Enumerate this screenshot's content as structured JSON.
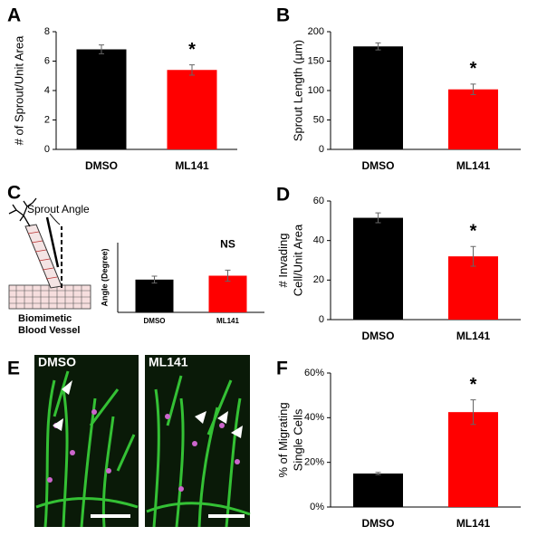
{
  "chart_data": [
    {
      "type": "bar",
      "panel": "A",
      "ylabel": [
        "# of Sprout/Unit Area"
      ],
      "categories": [
        "DMSO",
        "ML141"
      ],
      "values": [
        6.8,
        5.4
      ],
      "errors": [
        0.3,
        0.35
      ],
      "colors": [
        "#000000",
        "#ff0000"
      ],
      "ylim": [
        0,
        8
      ],
      "yticks": [
        0,
        2,
        4,
        6,
        8
      ],
      "annotation": "*"
    },
    {
      "type": "bar",
      "panel": "B",
      "ylabel": [
        "Sprout Length (µm)"
      ],
      "categories": [
        "DMSO",
        "ML141"
      ],
      "values": [
        175,
        102
      ],
      "errors": [
        6,
        9
      ],
      "colors": [
        "#000000",
        "#ff0000"
      ],
      "ylim": [
        0,
        200
      ],
      "yticks": [
        0,
        50,
        100,
        150,
        200
      ],
      "annotation": "*"
    },
    {
      "type": "bar",
      "panel": "C",
      "ylabel": [
        "Angle (Degree)"
      ],
      "categories": [
        "DMSO",
        "ML141"
      ],
      "values": [
        23.5,
        26.3
      ],
      "errors": [
        2.5,
        4
      ],
      "colors": [
        "#000000",
        "#ff0000"
      ],
      "ylim": [
        0,
        50
      ],
      "annotation": "NS"
    },
    {
      "type": "bar",
      "panel": "D",
      "ylabel": [
        "# Invading",
        "Cell/Unit Area"
      ],
      "categories": [
        "DMSO",
        "ML141"
      ],
      "values": [
        51.5,
        32
      ],
      "errors": [
        2.5,
        5
      ],
      "colors": [
        "#000000",
        "#ff0000"
      ],
      "ylim": [
        0,
        60
      ],
      "yticks": [
        0,
        20,
        40,
        60
      ],
      "annotation": "*"
    },
    {
      "type": "bar",
      "panel": "F",
      "ylabel": [
        "% of Migrating",
        "Single Cells"
      ],
      "categories": [
        "DMSO",
        "ML141"
      ],
      "values": [
        15,
        42.5
      ],
      "errors": [
        0.5,
        5.5
      ],
      "colors": [
        "#000000",
        "#ff0000"
      ],
      "ylim": [
        0,
        60
      ],
      "yticks": [
        {
          "value": 0,
          "label": "0%"
        },
        {
          "value": 20,
          "label": "20%"
        },
        {
          "value": 40,
          "label": "40%"
        },
        {
          "value": 60,
          "label": "60%"
        }
      ],
      "annotation": "*"
    }
  ],
  "diagram": {
    "label": "Sprout Angle",
    "caption": [
      "Biomimetic",
      "Blood Vessel"
    ]
  },
  "images": {
    "panel": "E",
    "left": "DMSO",
    "right": "ML141"
  }
}
